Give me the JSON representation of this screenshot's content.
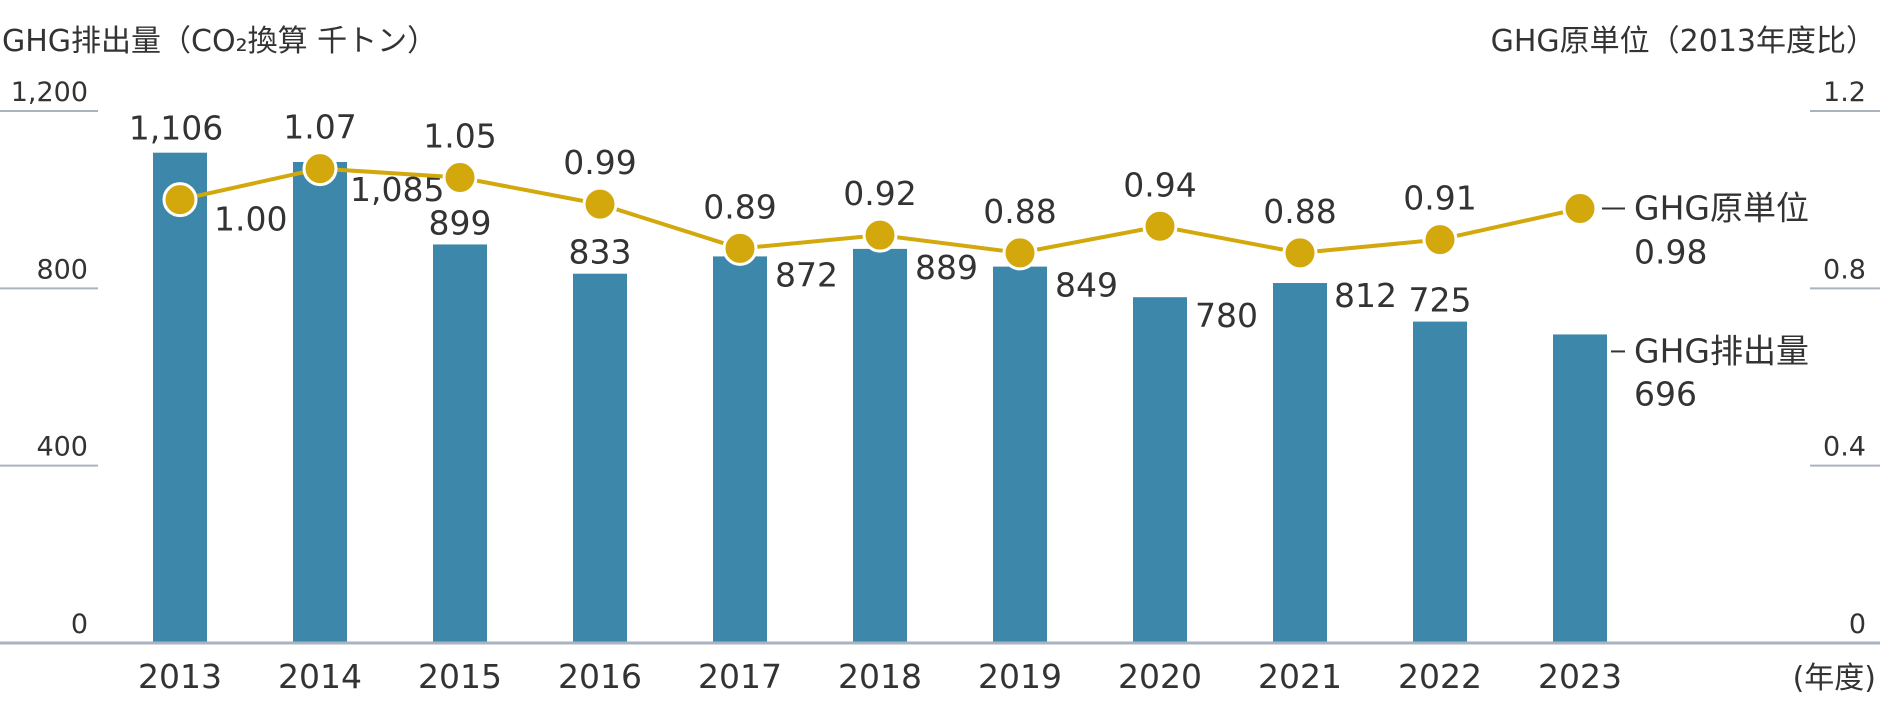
{
  "chart_data": {
    "type": "bar",
    "left_axis_title": "GHG排出量（CO₂換算 千トン）",
    "right_axis_title": "GHG原単位（2013年度比）",
    "x_unit_label": "(年度)",
    "categories": [
      "2013",
      "2014",
      "2015",
      "2016",
      "2017",
      "2018",
      "2019",
      "2020",
      "2021",
      "2022",
      "2023"
    ],
    "left_ticks": [
      "0",
      "400",
      "800",
      "1,200"
    ],
    "right_ticks": [
      "0",
      "0.4",
      "0.8",
      "1.2"
    ],
    "ylim_left": [
      0,
      1200
    ],
    "ylim_right": [
      0,
      1.2
    ],
    "grid": false,
    "series": [
      {
        "name": "GHG排出量",
        "type": "bar",
        "axis": "left",
        "values": [
          1106,
          1085,
          899,
          833,
          872,
          889,
          849,
          780,
          812,
          725,
          696
        ],
        "labels": [
          "1,106",
          "1,085",
          "899",
          "833",
          "872",
          "889",
          "849",
          "780",
          "812",
          "725",
          "696"
        ]
      },
      {
        "name": "GHG原単位",
        "type": "line",
        "axis": "right",
        "values": [
          1.0,
          1.07,
          1.05,
          0.99,
          0.89,
          0.92,
          0.88,
          0.94,
          0.88,
          0.91,
          0.98
        ],
        "labels": [
          "1.00",
          "1.07",
          "1.05",
          "0.99",
          "0.89",
          "0.92",
          "0.88",
          "0.94",
          "0.88",
          "0.91",
          "0.98"
        ]
      }
    ],
    "colors": {
      "bar": "#3d88aa",
      "line": "#d2a80c",
      "axis": "#aab4c0",
      "text": "#333333"
    }
  }
}
